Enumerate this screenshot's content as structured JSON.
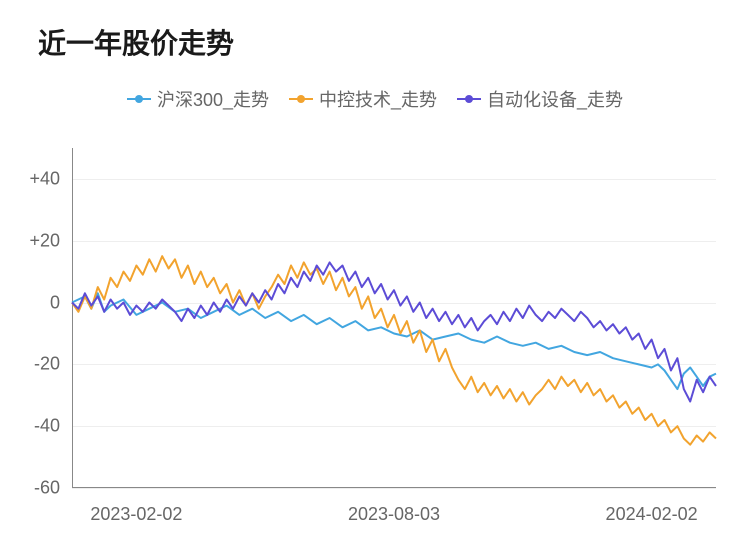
{
  "chart": {
    "type": "line",
    "title": "近一年股价走势",
    "title_fontsize": 28,
    "title_fontweight": 700,
    "background_color": "#ffffff",
    "grid_color": "#eeeeee",
    "axis_color": "#888888",
    "tick_font_color": "#666666",
    "tick_fontsize": 18,
    "legend_fontsize": 18,
    "line_width": 2,
    "ylim": [
      -60,
      50
    ],
    "yticks": [
      40,
      20,
      0,
      -20,
      -40,
      -60
    ],
    "ytick_labels": [
      "+40",
      "+20",
      "0",
      "-20",
      "-40",
      "-60"
    ],
    "xlim": [
      0,
      100
    ],
    "xtick_positions": [
      10,
      50,
      90
    ],
    "xtick_labels": [
      "2023-02-02",
      "2023-08-03",
      "2024-02-02"
    ],
    "legend": [
      {
        "label": "沪深300_走势",
        "color": "#42a6e0"
      },
      {
        "label": "中控技术_走势",
        "color": "#f2a32e"
      },
      {
        "label": "自动化设备_走势",
        "color": "#5c4cd6"
      }
    ],
    "series": [
      {
        "name": "沪深300_走势",
        "color": "#42a6e0",
        "data": [
          [
            0,
            0
          ],
          [
            2,
            2
          ],
          [
            3,
            -2
          ],
          [
            4,
            3
          ],
          [
            5,
            -3
          ],
          [
            6,
            -1
          ],
          [
            8,
            1
          ],
          [
            10,
            -4
          ],
          [
            12,
            -2
          ],
          [
            14,
            0
          ],
          [
            16,
            -3
          ],
          [
            18,
            -2
          ],
          [
            20,
            -5
          ],
          [
            22,
            -3
          ],
          [
            24,
            -1
          ],
          [
            26,
            -4
          ],
          [
            28,
            -2
          ],
          [
            30,
            -5
          ],
          [
            32,
            -3
          ],
          [
            34,
            -6
          ],
          [
            36,
            -4
          ],
          [
            38,
            -7
          ],
          [
            40,
            -5
          ],
          [
            42,
            -8
          ],
          [
            44,
            -6
          ],
          [
            46,
            -9
          ],
          [
            48,
            -8
          ],
          [
            50,
            -10
          ],
          [
            52,
            -11
          ],
          [
            54,
            -9
          ],
          [
            56,
            -12
          ],
          [
            58,
            -11
          ],
          [
            60,
            -10
          ],
          [
            62,
            -12
          ],
          [
            64,
            -13
          ],
          [
            66,
            -11
          ],
          [
            68,
            -13
          ],
          [
            70,
            -14
          ],
          [
            72,
            -13
          ],
          [
            74,
            -15
          ],
          [
            76,
            -14
          ],
          [
            78,
            -16
          ],
          [
            80,
            -17
          ],
          [
            82,
            -16
          ],
          [
            84,
            -18
          ],
          [
            86,
            -19
          ],
          [
            88,
            -20
          ],
          [
            90,
            -21
          ],
          [
            91,
            -20
          ],
          [
            92,
            -22
          ],
          [
            93,
            -25
          ],
          [
            94,
            -28
          ],
          [
            95,
            -23
          ],
          [
            96,
            -21
          ],
          [
            97,
            -24
          ],
          [
            98,
            -27
          ],
          [
            99,
            -24
          ],
          [
            100,
            -23
          ]
        ]
      },
      {
        "name": "中控技术_走势",
        "color": "#f2a32e",
        "data": [
          [
            0,
            0
          ],
          [
            1,
            -3
          ],
          [
            2,
            2
          ],
          [
            3,
            -2
          ],
          [
            4,
            5
          ],
          [
            5,
            1
          ],
          [
            6,
            8
          ],
          [
            7,
            5
          ],
          [
            8,
            10
          ],
          [
            9,
            7
          ],
          [
            10,
            12
          ],
          [
            11,
            9
          ],
          [
            12,
            14
          ],
          [
            13,
            10
          ],
          [
            14,
            15
          ],
          [
            15,
            11
          ],
          [
            16,
            14
          ],
          [
            17,
            8
          ],
          [
            18,
            12
          ],
          [
            19,
            6
          ],
          [
            20,
            10
          ],
          [
            21,
            5
          ],
          [
            22,
            8
          ],
          [
            23,
            3
          ],
          [
            24,
            6
          ],
          [
            25,
            0
          ],
          [
            26,
            4
          ],
          [
            27,
            -1
          ],
          [
            28,
            3
          ],
          [
            29,
            -2
          ],
          [
            30,
            2
          ],
          [
            31,
            5
          ],
          [
            32,
            9
          ],
          [
            33,
            6
          ],
          [
            34,
            12
          ],
          [
            35,
            8
          ],
          [
            36,
            13
          ],
          [
            37,
            9
          ],
          [
            38,
            11
          ],
          [
            39,
            6
          ],
          [
            40,
            10
          ],
          [
            41,
            4
          ],
          [
            42,
            8
          ],
          [
            43,
            2
          ],
          [
            44,
            5
          ],
          [
            45,
            -2
          ],
          [
            46,
            2
          ],
          [
            47,
            -5
          ],
          [
            48,
            -2
          ],
          [
            49,
            -8
          ],
          [
            50,
            -4
          ],
          [
            51,
            -10
          ],
          [
            52,
            -6
          ],
          [
            53,
            -13
          ],
          [
            54,
            -9
          ],
          [
            55,
            -16
          ],
          [
            56,
            -12
          ],
          [
            57,
            -19
          ],
          [
            58,
            -15
          ],
          [
            59,
            -21
          ],
          [
            60,
            -25
          ],
          [
            61,
            -28
          ],
          [
            62,
            -24
          ],
          [
            63,
            -29
          ],
          [
            64,
            -26
          ],
          [
            65,
            -30
          ],
          [
            66,
            -27
          ],
          [
            67,
            -31
          ],
          [
            68,
            -28
          ],
          [
            69,
            -32
          ],
          [
            70,
            -29
          ],
          [
            71,
            -33
          ],
          [
            72,
            -30
          ],
          [
            73,
            -28
          ],
          [
            74,
            -25
          ],
          [
            75,
            -28
          ],
          [
            76,
            -24
          ],
          [
            77,
            -27
          ],
          [
            78,
            -25
          ],
          [
            79,
            -29
          ],
          [
            80,
            -26
          ],
          [
            81,
            -30
          ],
          [
            82,
            -28
          ],
          [
            83,
            -32
          ],
          [
            84,
            -30
          ],
          [
            85,
            -34
          ],
          [
            86,
            -32
          ],
          [
            87,
            -36
          ],
          [
            88,
            -34
          ],
          [
            89,
            -38
          ],
          [
            90,
            -36
          ],
          [
            91,
            -40
          ],
          [
            92,
            -38
          ],
          [
            93,
            -42
          ],
          [
            94,
            -40
          ],
          [
            95,
            -44
          ],
          [
            96,
            -46
          ],
          [
            97,
            -43
          ],
          [
            98,
            -45
          ],
          [
            99,
            -42
          ],
          [
            100,
            -44
          ]
        ]
      },
      {
        "name": "自动化设备_走势",
        "color": "#5c4cd6",
        "data": [
          [
            0,
            0
          ],
          [
            1,
            -2
          ],
          [
            2,
            3
          ],
          [
            3,
            -1
          ],
          [
            4,
            2
          ],
          [
            5,
            -3
          ],
          [
            6,
            1
          ],
          [
            7,
            -2
          ],
          [
            8,
            0
          ],
          [
            9,
            -4
          ],
          [
            10,
            -1
          ],
          [
            11,
            -3
          ],
          [
            12,
            0
          ],
          [
            13,
            -2
          ],
          [
            14,
            1
          ],
          [
            15,
            -1
          ],
          [
            16,
            -3
          ],
          [
            17,
            -6
          ],
          [
            18,
            -2
          ],
          [
            19,
            -5
          ],
          [
            20,
            -1
          ],
          [
            21,
            -4
          ],
          [
            22,
            0
          ],
          [
            23,
            -3
          ],
          [
            24,
            1
          ],
          [
            25,
            -2
          ],
          [
            26,
            2
          ],
          [
            27,
            -1
          ],
          [
            28,
            3
          ],
          [
            29,
            0
          ],
          [
            30,
            4
          ],
          [
            31,
            1
          ],
          [
            32,
            6
          ],
          [
            33,
            3
          ],
          [
            34,
            8
          ],
          [
            35,
            5
          ],
          [
            36,
            10
          ],
          [
            37,
            7
          ],
          [
            38,
            12
          ],
          [
            39,
            9
          ],
          [
            40,
            13
          ],
          [
            41,
            10
          ],
          [
            42,
            12
          ],
          [
            43,
            7
          ],
          [
            44,
            10
          ],
          [
            45,
            5
          ],
          [
            46,
            8
          ],
          [
            47,
            3
          ],
          [
            48,
            6
          ],
          [
            49,
            1
          ],
          [
            50,
            4
          ],
          [
            51,
            -1
          ],
          [
            52,
            2
          ],
          [
            53,
            -3
          ],
          [
            54,
            0
          ],
          [
            55,
            -5
          ],
          [
            56,
            -2
          ],
          [
            57,
            -6
          ],
          [
            58,
            -3
          ],
          [
            59,
            -7
          ],
          [
            60,
            -4
          ],
          [
            61,
            -8
          ],
          [
            62,
            -5
          ],
          [
            63,
            -9
          ],
          [
            64,
            -6
          ],
          [
            65,
            -4
          ],
          [
            66,
            -7
          ],
          [
            67,
            -3
          ],
          [
            68,
            -6
          ],
          [
            69,
            -2
          ],
          [
            70,
            -5
          ],
          [
            71,
            -1
          ],
          [
            72,
            -4
          ],
          [
            73,
            -6
          ],
          [
            74,
            -3
          ],
          [
            75,
            -5
          ],
          [
            76,
            -2
          ],
          [
            77,
            -4
          ],
          [
            78,
            -6
          ],
          [
            79,
            -3
          ],
          [
            80,
            -5
          ],
          [
            81,
            -8
          ],
          [
            82,
            -6
          ],
          [
            83,
            -9
          ],
          [
            84,
            -7
          ],
          [
            85,
            -10
          ],
          [
            86,
            -8
          ],
          [
            87,
            -12
          ],
          [
            88,
            -10
          ],
          [
            89,
            -15
          ],
          [
            90,
            -12
          ],
          [
            91,
            -18
          ],
          [
            92,
            -15
          ],
          [
            93,
            -22
          ],
          [
            94,
            -18
          ],
          [
            95,
            -28
          ],
          [
            96,
            -32
          ],
          [
            97,
            -25
          ],
          [
            98,
            -29
          ],
          [
            99,
            -24
          ],
          [
            100,
            -27
          ]
        ]
      }
    ]
  }
}
